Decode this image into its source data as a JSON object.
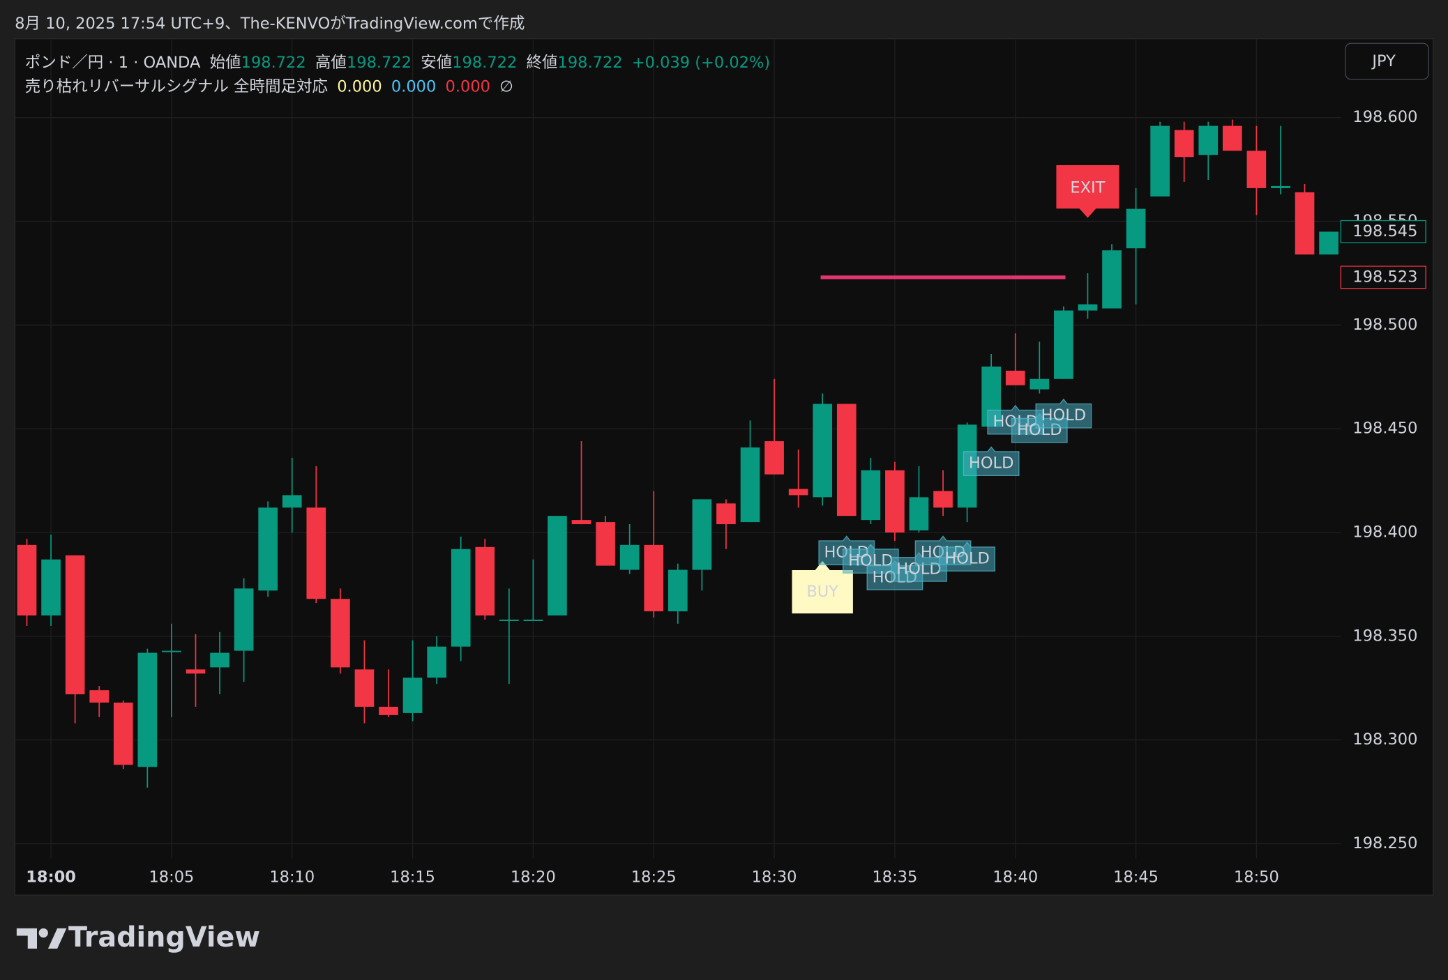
{
  "header": {
    "caption": "8月 10, 2025 17:54 UTC+9、The-KENVOがTradingView.comで作成"
  },
  "footer": {
    "brand": "TradingView"
  },
  "chart_data": {
    "type": "candlestick",
    "currency": "JPY",
    "legend": {
      "symbol": "ポンド／円 · 1 · OANDA",
      "fields": [
        {
          "label": "始値",
          "value": 198.722
        },
        {
          "label": "高値",
          "value": 198.722
        },
        {
          "label": "安値",
          "value": 198.722
        },
        {
          "label": "終値",
          "value": 198.722
        }
      ],
      "change": "+0.039 (+0.02%)",
      "indicator": "売り枯れリバーサルシグナル 全時間足対応",
      "indicator_values": [
        0,
        0,
        0
      ],
      "indicator_value_labels": [
        "0.000",
        "0.000",
        "0.000"
      ],
      "indicator_colors": [
        "#fff59d",
        "#4fc3f7",
        "#f23645"
      ],
      "indicator_symbol": "∅"
    },
    "up_color": "#089981",
    "down_color": "#f23645",
    "categories": [
      null,
      "18:00",
      null,
      null,
      null,
      null,
      "18:05",
      null,
      null,
      null,
      null,
      "18:10",
      null,
      null,
      null,
      null,
      "18:15",
      null,
      null,
      null,
      null,
      "18:20",
      null,
      null,
      null,
      null,
      "18:25",
      null,
      null,
      null,
      null,
      "18:30",
      null,
      null,
      null,
      null,
      "18:35",
      null,
      null,
      null,
      null,
      "18:40",
      null,
      null,
      null,
      null,
      "18:45",
      null,
      null,
      null,
      null,
      "18:50",
      null,
      null,
      null
    ],
    "open": [
      198.394,
      198.36,
      198.389,
      198.324,
      198.318,
      198.287,
      198.343,
      198.334,
      198.335,
      198.343,
      198.372,
      198.412,
      198.412,
      198.368,
      198.334,
      198.316,
      198.313,
      198.33,
      198.345,
      198.393,
      198.358,
      198.358,
      198.36,
      198.406,
      198.405,
      198.382,
      198.394,
      198.362,
      198.382,
      198.414,
      198.405,
      198.444,
      198.421,
      198.417,
      198.462,
      198.406,
      198.43,
      198.401,
      198.42,
      198.412,
      198.451,
      198.478,
      198.469,
      198.474,
      198.507,
      198.508,
      198.537,
      198.562,
      198.594,
      198.582,
      198.596,
      198.584,
      198.566,
      198.564,
      198.534
    ],
    "high": [
      198.397,
      198.399,
      198.389,
      198.326,
      198.319,
      198.344,
      198.356,
      198.351,
      198.352,
      198.378,
      198.415,
      198.436,
      198.432,
      198.373,
      198.348,
      198.334,
      198.348,
      198.35,
      198.398,
      198.397,
      198.373,
      198.387,
      198.408,
      198.444,
      198.408,
      198.404,
      198.42,
      198.385,
      198.416,
      198.416,
      198.454,
      198.474,
      198.44,
      198.467,
      198.462,
      198.436,
      198.434,
      198.432,
      198.43,
      198.453,
      198.486,
      198.496,
      198.492,
      198.509,
      198.525,
      198.539,
      198.566,
      198.598,
      198.598,
      198.598,
      198.599,
      198.596,
      198.596,
      198.568,
      198.545
    ],
    "low": [
      198.355,
      198.355,
      198.308,
      198.311,
      198.286,
      198.277,
      198.311,
      198.316,
      198.322,
      198.328,
      198.369,
      198.4,
      198.366,
      198.332,
      198.308,
      198.311,
      198.309,
      198.327,
      198.338,
      198.358,
      198.327,
      198.358,
      198.36,
      198.404,
      198.384,
      198.38,
      198.359,
      198.356,
      198.372,
      198.392,
      198.405,
      198.428,
      198.412,
      198.413,
      198.408,
      198.404,
      198.396,
      198.4,
      198.408,
      198.405,
      198.451,
      198.471,
      198.467,
      198.474,
      198.503,
      198.508,
      198.51,
      198.562,
      198.569,
      198.57,
      198.584,
      198.553,
      198.563,
      198.534,
      198.534
    ],
    "close": [
      198.36,
      198.387,
      198.322,
      198.318,
      198.288,
      198.342,
      198.343,
      198.332,
      198.342,
      198.373,
      198.412,
      198.418,
      198.368,
      198.335,
      198.316,
      198.312,
      198.33,
      198.345,
      198.392,
      198.36,
      198.358,
      198.358,
      198.408,
      198.404,
      198.384,
      198.394,
      198.362,
      198.382,
      198.416,
      198.404,
      198.441,
      198.428,
      198.418,
      198.462,
      198.408,
      198.43,
      198.4,
      198.417,
      198.412,
      198.452,
      198.48,
      198.471,
      198.474,
      198.507,
      198.51,
      198.536,
      198.556,
      198.596,
      198.581,
      198.596,
      198.584,
      198.566,
      198.567,
      198.534,
      198.545
    ],
    "signals": [
      null,
      null,
      null,
      null,
      null,
      null,
      null,
      null,
      null,
      null,
      null,
      null,
      null,
      null,
      null,
      null,
      null,
      null,
      null,
      null,
      null,
      null,
      null,
      null,
      null,
      null,
      null,
      null,
      null,
      null,
      null,
      null,
      null,
      "BUY",
      "HOLD",
      "HOLD",
      "HOLD",
      "HOLD",
      "HOLD",
      "HOLD",
      "HOLD",
      "HOLD",
      "HOLD",
      "HOLD",
      "EXIT",
      null,
      null,
      null,
      null,
      null,
      null,
      null,
      null,
      null,
      null
    ],
    "level_line": {
      "value": 198.523,
      "color": "#e0356f"
    },
    "price_labels": [
      {
        "value": 198.545,
        "label": "198.545",
        "color": "#089981"
      },
      {
        "value": 198.523,
        "label": "198.523",
        "color": "#f23645"
      }
    ],
    "ylim": [
      198.243,
      198.638
    ],
    "yticks": [
      {
        "value": 198.25,
        "label": "198.250"
      },
      {
        "value": 198.3,
        "label": "198.300"
      },
      {
        "value": 198.35,
        "label": "198.350"
      },
      {
        "value": 198.4,
        "label": "198.400"
      },
      {
        "value": 198.45,
        "label": "198.450"
      },
      {
        "value": 198.5,
        "label": "198.500"
      },
      {
        "value": 198.55,
        "label": "198.550"
      },
      {
        "value": 198.6,
        "label": "198.600"
      }
    ],
    "grid": true
  }
}
